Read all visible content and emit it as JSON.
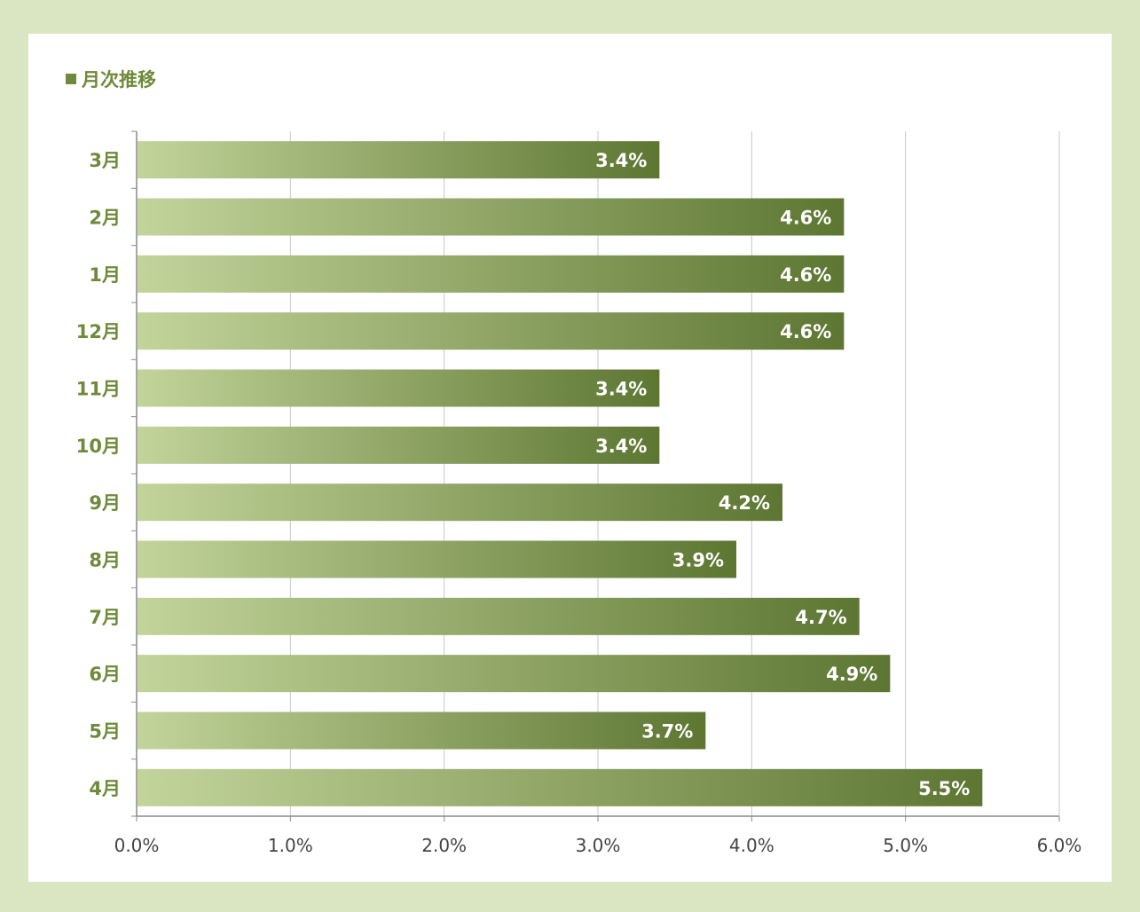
{
  "colors": {
    "page_background": "#dae6c2",
    "panel_background": "#ffffff",
    "title_color": "#6e8a3a",
    "bar_gradient_start": "#c2d49a",
    "bar_gradient_end": "#5d7632",
    "gridline": "#c8c8c8",
    "axis": "#8a8a8a"
  },
  "chart_data": {
    "type": "bar",
    "orientation": "horizontal",
    "title": "■月次推移",
    "title_text": "月次推移",
    "categories": [
      "3月",
      "2月",
      "1月",
      "12月",
      "11月",
      "10月",
      "9月",
      "8月",
      "7月",
      "6月",
      "5月",
      "4月"
    ],
    "values": [
      3.4,
      4.6,
      4.6,
      4.6,
      3.4,
      3.4,
      4.2,
      3.9,
      4.7,
      4.9,
      3.7,
      5.5
    ],
    "value_labels": [
      "3.4%",
      "4.6%",
      "4.6%",
      "4.6%",
      "3.4%",
      "3.4%",
      "4.2%",
      "3.9%",
      "4.7%",
      "4.9%",
      "3.7%",
      "5.5%"
    ],
    "xlim": [
      0,
      6
    ],
    "x_ticks": [
      0,
      1,
      2,
      3,
      4,
      5,
      6
    ],
    "x_tick_labels": [
      "0.0%",
      "1.0%",
      "2.0%",
      "3.0%",
      "4.0%",
      "5.0%",
      "6.0%"
    ],
    "xlabel": "",
    "ylabel": "",
    "grid": true,
    "legend": "none"
  }
}
